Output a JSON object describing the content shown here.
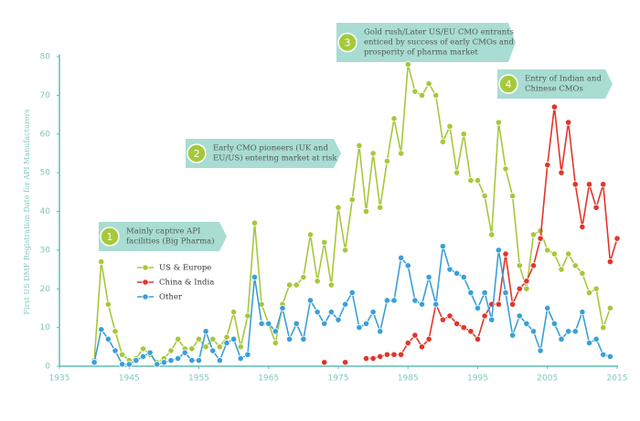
{
  "chart_data": {
    "type": "line",
    "y_label": "First US DMF Registration Date for API Manufacturers",
    "x": [
      1940,
      1941,
      1942,
      1943,
      1944,
      1945,
      1946,
      1947,
      1948,
      1949,
      1950,
      1951,
      1952,
      1953,
      1954,
      1955,
      1956,
      1957,
      1958,
      1959,
      1960,
      1961,
      1962,
      1963,
      1964,
      1965,
      1966,
      1967,
      1968,
      1969,
      1970,
      1971,
      1972,
      1973,
      1974,
      1975,
      1976,
      1977,
      1978,
      1979,
      1980,
      1981,
      1982,
      1983,
      1984,
      1985,
      1986,
      1987,
      1988,
      1989,
      1990,
      1991,
      1992,
      1993,
      1994,
      1995,
      1996,
      1997,
      1998,
      1999,
      2000,
      2001,
      2002,
      2003,
      2004,
      2005,
      2006,
      2007,
      2008,
      2009,
      2010,
      2011,
      2012,
      2013,
      2014,
      2015
    ],
    "series": [
      {
        "name": "US & Europe",
        "color": "#a6c83b",
        "values": [
          1.5,
          27,
          16,
          9,
          3,
          1.5,
          2,
          4.5,
          3,
          1,
          2,
          4,
          7,
          4.5,
          4.5,
          7,
          5,
          7,
          5,
          7.5,
          14,
          5,
          13,
          37,
          16,
          11,
          6,
          16,
          21,
          21,
          23,
          34,
          22,
          32,
          21,
          41,
          30,
          43,
          57,
          40,
          55,
          41,
          53,
          64,
          55,
          78,
          71,
          70,
          73,
          70,
          58,
          62,
          50,
          60,
          48,
          48,
          44,
          34,
          63,
          51,
          44,
          26,
          20,
          34,
          35,
          30,
          29,
          25,
          29,
          26,
          24,
          19,
          20,
          10,
          15,
          null
        ]
      },
      {
        "name": "China & India",
        "color": "#e2352a",
        "values": [
          null,
          null,
          null,
          null,
          null,
          null,
          null,
          null,
          null,
          null,
          null,
          null,
          null,
          null,
          null,
          null,
          null,
          null,
          null,
          null,
          null,
          null,
          null,
          null,
          null,
          null,
          null,
          null,
          null,
          null,
          null,
          null,
          null,
          1,
          null,
          null,
          1,
          null,
          null,
          2,
          2,
          2.5,
          3,
          3,
          3,
          6,
          8,
          5,
          7,
          16,
          12,
          13,
          11,
          10,
          9,
          7,
          13,
          16,
          16,
          29,
          16,
          20,
          22,
          26,
          33,
          52,
          67,
          50,
          63,
          47,
          36,
          47,
          41,
          47,
          27,
          33
        ]
      },
      {
        "name": "Other",
        "color": "#3a9fd9",
        "values": [
          1,
          9.5,
          7,
          4,
          0.5,
          0.5,
          1.5,
          2.5,
          3.5,
          0.5,
          1,
          1.5,
          2,
          3.5,
          1.5,
          1.5,
          9,
          4,
          1.5,
          6,
          7,
          2,
          3,
          23,
          11,
          11,
          9,
          15,
          7,
          11,
          7,
          17,
          14,
          11,
          14,
          12,
          16,
          19,
          10,
          11,
          14,
          9,
          17,
          17,
          28,
          26,
          17,
          16,
          23,
          16,
          31,
          25,
          24,
          23,
          19,
          15,
          19,
          12,
          30,
          19,
          8,
          13,
          11,
          9,
          4,
          15,
          11,
          7,
          9,
          9,
          14,
          6,
          7,
          3,
          2.5,
          null
        ]
      }
    ],
    "xlim": [
      1935,
      2015
    ],
    "xticks": [
      1935,
      1945,
      1955,
      1965,
      1975,
      1985,
      1995,
      2005,
      2015
    ],
    "ylim": [
      0,
      80
    ],
    "yticks": [
      0,
      10,
      20,
      30,
      40,
      50,
      60,
      70,
      80
    ],
    "grid": false,
    "annotations": [
      {
        "number": 1,
        "lines": [
          "Mainly captive API",
          "facilities (Big Pharma)"
        ]
      },
      {
        "number": 2,
        "lines": [
          "Early CMO pioneers (UK and",
          "EU/US) entering market at risk"
        ]
      },
      {
        "number": 3,
        "lines": [
          "Gold rush/Later US/EU CMO entrants",
          "enticed by success of early CMOs and",
          "prosperity of pharma market"
        ]
      },
      {
        "number": 4,
        "lines": [
          "Entry of Indian and",
          "Chinese CMOs"
        ]
      }
    ]
  }
}
